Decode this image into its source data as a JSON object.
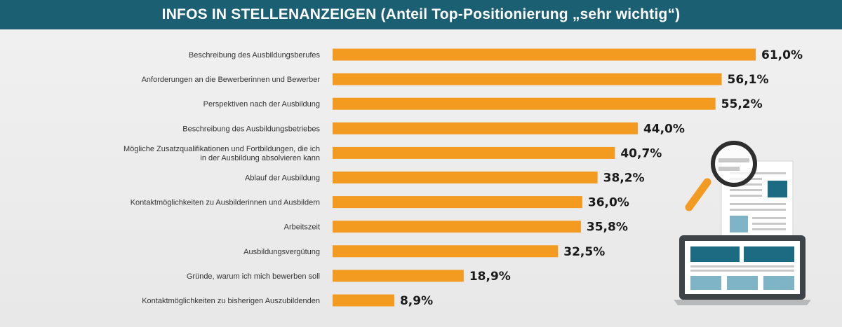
{
  "title": "INFOS IN STELLENANZEIGEN (Anteil Top-Positionierung „sehr wichtig“)",
  "colors": {
    "header_bg": "#1b5f72",
    "bar": "#f39a21",
    "illustration_teal": "#1d6b82",
    "illustration_light": "#7fb3c6",
    "magnifier_handle": "#f39a21"
  },
  "illustration": {
    "icons": [
      "laptop-icon",
      "document-icon",
      "magnifier-icon"
    ]
  },
  "chart_data": {
    "type": "bar",
    "orientation": "horizontal",
    "title": "INFOS IN STELLENANZEIGEN (Anteil Top-Positionierung „sehr wichtig“)",
    "xlabel": "",
    "ylabel": "",
    "xlim": [
      0,
      61
    ],
    "grid": false,
    "categories": [
      [
        "Beschreibung des Ausbildungsberufes"
      ],
      [
        "Anforderungen an die Bewerberinnen und Bewerber"
      ],
      [
        "Perspektiven nach der Ausbildung"
      ],
      [
        "Beschreibung des Ausbildungsbetriebes"
      ],
      [
        "Mögliche Zusatzqualifikationen und Fortbildungen, die ich",
        "in der Ausbildung absolvieren kann"
      ],
      [
        "Ablauf der Ausbildung"
      ],
      [
        "Kontaktmöglichkeiten zu Ausbilderinnen und Ausbildern"
      ],
      [
        "Arbeitszeit"
      ],
      [
        "Ausbildungsvergütung"
      ],
      [
        "Gründe, warum ich mich bewerben soll"
      ],
      [
        "Kontaktmöglichkeiten zu bisherigen Auszubildenden"
      ]
    ],
    "values": [
      61.0,
      56.1,
      55.2,
      44.0,
      40.7,
      38.2,
      36.0,
      35.8,
      32.5,
      18.9,
      8.9
    ],
    "value_labels": [
      "61,0%",
      "56,1%",
      "55,2%",
      "44,0%",
      "40,7%",
      "38,2%",
      "36,0%",
      "35,8%",
      "32,5%",
      "18,9%",
      "8,9%"
    ]
  }
}
